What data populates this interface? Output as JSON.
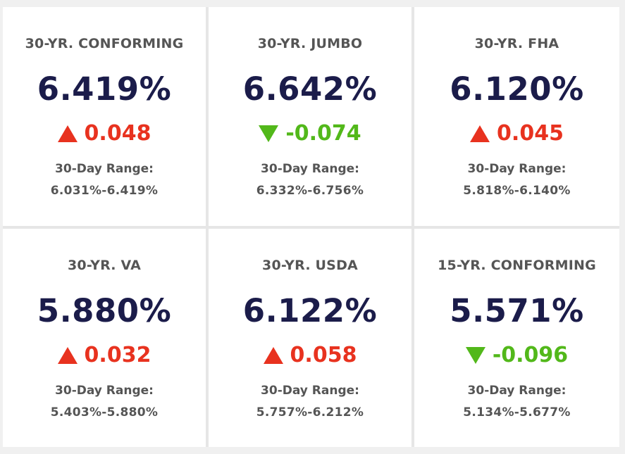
{
  "colors": {
    "up": "#e8321f",
    "down": "#52b81a",
    "rate": "#1b1c4a",
    "label": "#555555"
  },
  "cards": [
    {
      "title": "30-YR. CONFORMING",
      "rate": "6.419%",
      "direction": "up",
      "arrow_icon": "triangle-up-icon",
      "change": "0.048",
      "range_label": "30-Day Range:",
      "range": "6.031%-6.419%"
    },
    {
      "title": "30-YR. JUMBO",
      "rate": "6.642%",
      "direction": "down",
      "arrow_icon": "triangle-down-icon",
      "change": "-0.074",
      "range_label": "30-Day Range:",
      "range": "6.332%-6.756%"
    },
    {
      "title": "30-YR. FHA",
      "rate": "6.120%",
      "direction": "up",
      "arrow_icon": "triangle-up-icon",
      "change": "0.045",
      "range_label": "30-Day Range:",
      "range": "5.818%-6.140%"
    },
    {
      "title": "30-YR. VA",
      "rate": "5.880%",
      "direction": "up",
      "arrow_icon": "triangle-up-icon",
      "change": "0.032",
      "range_label": "30-Day Range:",
      "range": "5.403%-5.880%"
    },
    {
      "title": "30-YR. USDA",
      "rate": "6.122%",
      "direction": "up",
      "arrow_icon": "triangle-up-icon",
      "change": "0.058",
      "range_label": "30-Day Range:",
      "range": "5.757%-6.212%"
    },
    {
      "title": "15-YR. CONFORMING",
      "rate": "5.571%",
      "direction": "down",
      "arrow_icon": "triangle-down-icon",
      "change": "-0.096",
      "range_label": "30-Day Range:",
      "range": "5.134%-5.677%"
    }
  ]
}
